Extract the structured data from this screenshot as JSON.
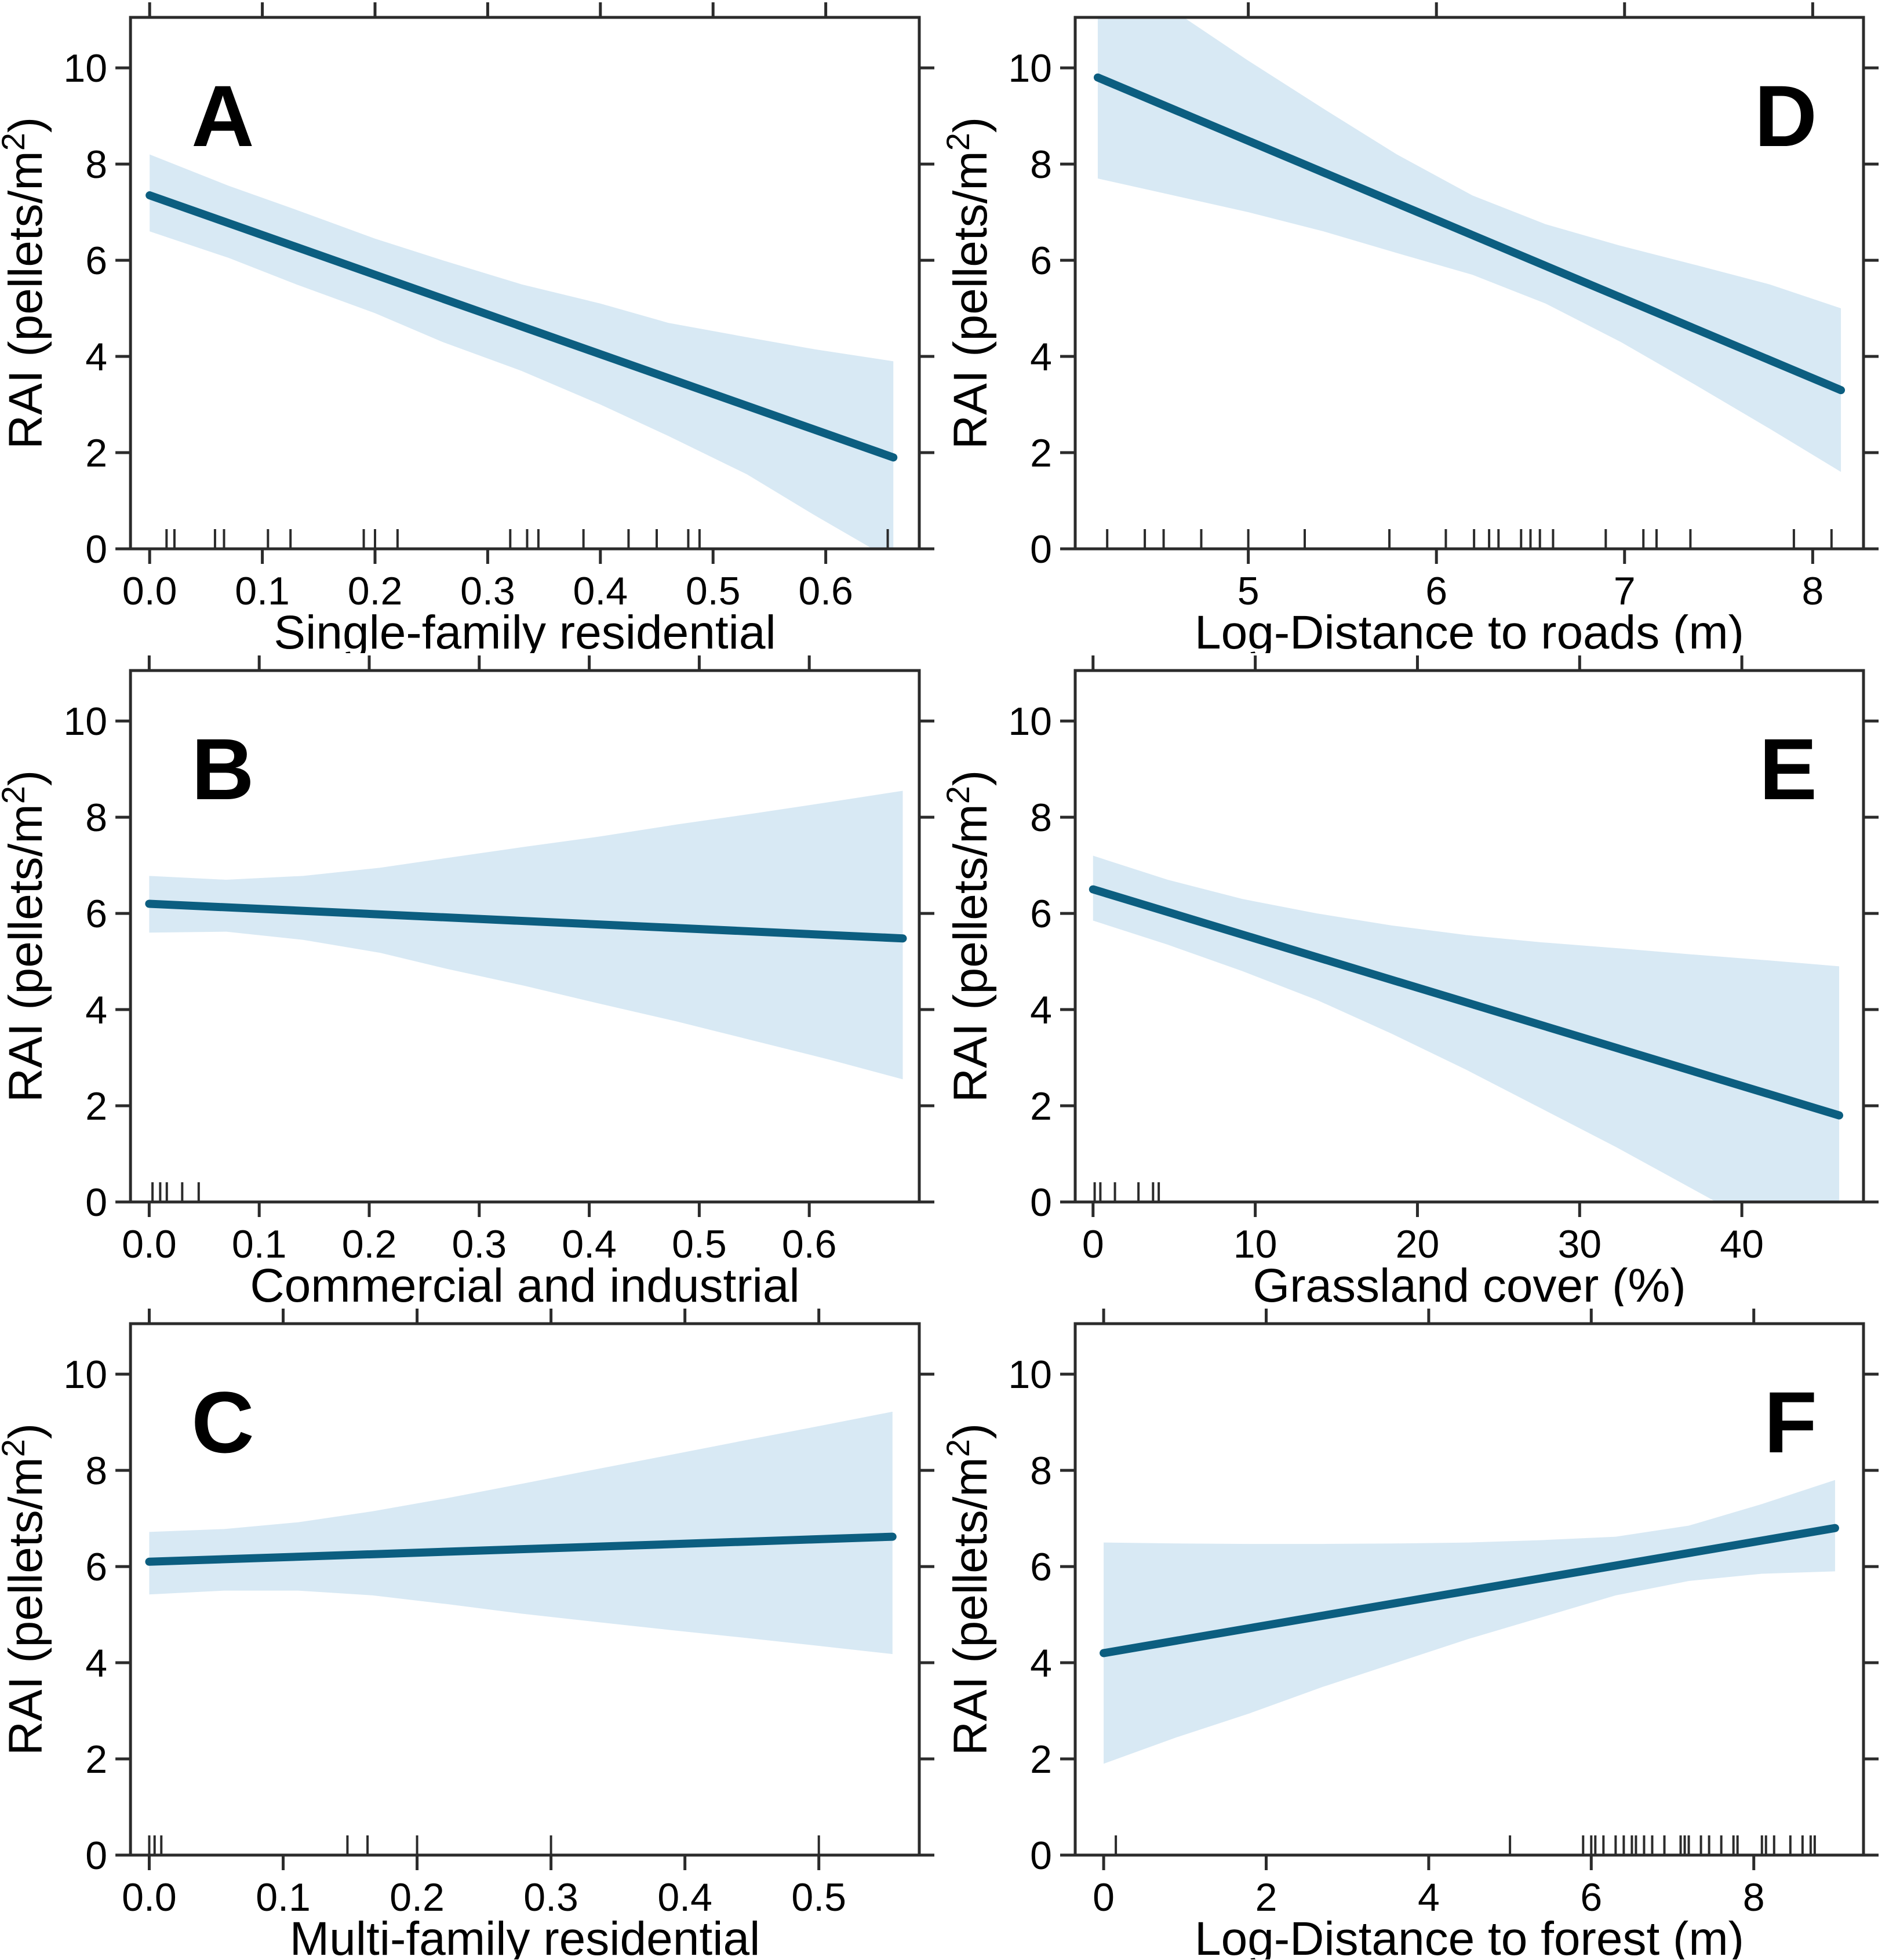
{
  "figure": {
    "description": "Six-panel regression figure of roe deer pellet density (RAI) versus landscape covariates, with 95% confidence bands and data rug marks",
    "background": "#ffffff"
  },
  "colors": {
    "line": "#0c5e80",
    "band": "#d8e9f4",
    "axis": "#2b2b2b",
    "text": "#000000"
  },
  "chart_data": [
    {
      "type": "line",
      "panel_letter": "A",
      "letter_side": "left",
      "xlabel": "Single-family residential",
      "ylabel": "RAI (pellets/m²)",
      "xlim": [
        -0.017,
        0.683
      ],
      "ylim": [
        0,
        11.05
      ],
      "xticks": [
        0,
        0.1,
        0.2,
        0.3,
        0.4,
        0.5,
        0.6
      ],
      "xtick_labels": [
        "0.0",
        "0.1",
        "0.2",
        "0.3",
        "0.4",
        "0.5",
        "0.6"
      ],
      "yticks": [
        0,
        2,
        4,
        6,
        8,
        10
      ],
      "ytick_labels": [
        "0",
        "2",
        "4",
        "6",
        "8",
        "10"
      ],
      "line": {
        "x": [
          0,
          0.66
        ],
        "y": [
          7.35,
          1.9
        ]
      },
      "band": {
        "x": [
          0,
          0.07,
          0.13,
          0.2,
          0.26,
          0.33,
          0.4,
          0.46,
          0.53,
          0.59,
          0.66
        ],
        "upper": [
          8.2,
          7.55,
          7.05,
          6.45,
          6.0,
          5.5,
          5.1,
          4.7,
          4.4,
          4.15,
          3.9
        ],
        "lower": [
          6.6,
          6.05,
          5.5,
          4.9,
          4.3,
          3.7,
          3.0,
          2.35,
          1.55,
          0.7,
          -0.25
        ]
      },
      "rug_x": [
        0.015,
        0.022,
        0.058,
        0.066,
        0.105,
        0.125,
        0.19,
        0.2,
        0.22,
        0.32,
        0.335,
        0.345,
        0.385,
        0.425,
        0.45,
        0.478,
        0.488,
        0.655
      ]
    },
    {
      "type": "line",
      "panel_letter": "D",
      "letter_side": "right",
      "xlabel": "Log-Distance to roads (m)",
      "ylabel": "RAI (pellets/m²)",
      "xlim": [
        4.08,
        8.27
      ],
      "ylim": [
        0,
        11.05
      ],
      "xticks": [
        5,
        6,
        7,
        8
      ],
      "xtick_labels": [
        "5",
        "6",
        "7",
        "8"
      ],
      "yticks": [
        0,
        2,
        4,
        6,
        8,
        10
      ],
      "ytick_labels": [
        "0",
        "2",
        "4",
        "6",
        "8",
        "10"
      ],
      "line": {
        "x": [
          4.2,
          8.15
        ],
        "y": [
          9.8,
          3.3
        ]
      },
      "band": {
        "x": [
          4.2,
          4.6,
          5.0,
          5.4,
          5.79,
          6.19,
          6.58,
          6.98,
          7.38,
          7.77,
          8.15
        ],
        "upper": [
          12.3,
          11.2,
          10.15,
          9.15,
          8.2,
          7.35,
          6.75,
          6.3,
          5.9,
          5.5,
          5.0
        ],
        "lower": [
          7.7,
          7.35,
          7.0,
          6.6,
          6.15,
          5.7,
          5.1,
          4.3,
          3.4,
          2.5,
          1.6
        ]
      },
      "rug_x": [
        4.25,
        4.45,
        4.55,
        4.75,
        5.0,
        5.3,
        5.75,
        6.05,
        6.2,
        6.28,
        6.33,
        6.45,
        6.5,
        6.55,
        6.62,
        6.9,
        7.1,
        7.17,
        7.35,
        7.9,
        8.1
      ]
    },
    {
      "type": "line",
      "panel_letter": "B",
      "letter_side": "left",
      "xlabel": "Commercial and industrial",
      "ylabel": "RAI (pellets/m²)",
      "xlim": [
        -0.017,
        0.7
      ],
      "ylim": [
        0,
        11.05
      ],
      "xticks": [
        0,
        0.1,
        0.2,
        0.3,
        0.4,
        0.5,
        0.6
      ],
      "xtick_labels": [
        "0.0",
        "0.1",
        "0.2",
        "0.3",
        "0.4",
        "0.5",
        "0.6"
      ],
      "yticks": [
        0,
        2,
        4,
        6,
        8,
        10
      ],
      "ytick_labels": [
        "0",
        "2",
        "4",
        "6",
        "8",
        "10"
      ],
      "line": {
        "x": [
          0,
          0.685
        ],
        "y": [
          6.2,
          5.48
        ]
      },
      "band": {
        "x": [
          0,
          0.07,
          0.14,
          0.21,
          0.27,
          0.34,
          0.41,
          0.48,
          0.55,
          0.62,
          0.685
        ],
        "upper": [
          6.78,
          6.7,
          6.78,
          6.95,
          7.15,
          7.38,
          7.6,
          7.85,
          8.08,
          8.32,
          8.55
        ],
        "lower": [
          5.6,
          5.62,
          5.45,
          5.18,
          4.85,
          4.5,
          4.12,
          3.75,
          3.35,
          2.95,
          2.55
        ]
      },
      "rug_x": [
        0.003,
        0.01,
        0.016,
        0.03,
        0.045
      ]
    },
    {
      "type": "line",
      "panel_letter": "E",
      "letter_side": "right",
      "xlabel": "Grassland cover (%)",
      "ylabel": "RAI (pellets/m²)",
      "xlim": [
        -1.1,
        47.5
      ],
      "ylim": [
        0,
        11.05
      ],
      "xticks": [
        0,
        10,
        20,
        30,
        40
      ],
      "xtick_labels": [
        "0",
        "10",
        "20",
        "30",
        "40"
      ],
      "yticks": [
        0,
        2,
        4,
        6,
        8,
        10
      ],
      "ytick_labels": [
        "0",
        "2",
        "4",
        "6",
        "8",
        "10"
      ],
      "line": {
        "x": [
          0,
          46
        ],
        "y": [
          6.5,
          1.8
        ]
      },
      "band": {
        "x": [
          0,
          4.6,
          9.2,
          13.8,
          18.4,
          23.0,
          27.6,
          32.2,
          36.8,
          41.4,
          46.0
        ],
        "upper": [
          7.2,
          6.7,
          6.3,
          6.0,
          5.75,
          5.55,
          5.4,
          5.28,
          5.15,
          5.03,
          4.9
        ],
        "lower": [
          5.85,
          5.35,
          4.8,
          4.2,
          3.5,
          2.75,
          1.95,
          1.15,
          0.3,
          -0.55,
          -1.4
        ]
      },
      "rug_x": [
        0.1,
        0.45,
        1.35,
        2.8,
        3.7,
        4.05
      ]
    },
    {
      "type": "line",
      "panel_letter": "C",
      "letter_side": "left",
      "xlabel": "Multi-family residential",
      "ylabel": "RAI (pellets/m²)",
      "xlim": [
        -0.014,
        0.575
      ],
      "ylim": [
        0,
        11.05
      ],
      "xticks": [
        0,
        0.1,
        0.2,
        0.3,
        0.4,
        0.5
      ],
      "xtick_labels": [
        "0.0",
        "0.1",
        "0.2",
        "0.3",
        "0.4",
        "0.5"
      ],
      "yticks": [
        0,
        2,
        4,
        6,
        8,
        10
      ],
      "ytick_labels": [
        "0",
        "2",
        "4",
        "6",
        "8",
        "10"
      ],
      "line": {
        "x": [
          0,
          0.555
        ],
        "y": [
          6.1,
          6.62
        ]
      },
      "band": {
        "x": [
          0,
          0.056,
          0.111,
          0.167,
          0.222,
          0.278,
          0.333,
          0.389,
          0.444,
          0.5,
          0.555
        ],
        "upper": [
          6.72,
          6.78,
          6.92,
          7.15,
          7.42,
          7.72,
          8.02,
          8.32,
          8.62,
          8.92,
          9.22
        ],
        "lower": [
          5.42,
          5.5,
          5.5,
          5.4,
          5.22,
          5.02,
          4.85,
          4.68,
          4.52,
          4.35,
          4.18
        ]
      },
      "rug_x": [
        0.0,
        0.004,
        0.009,
        0.148,
        0.163,
        0.2,
        0.3,
        0.5
      ]
    },
    {
      "type": "line",
      "panel_letter": "F",
      "letter_side": "right",
      "xlabel": "Log-Distance to forest (m)",
      "ylabel": "RAI (pellets/m²)",
      "xlim": [
        -0.35,
        9.35
      ],
      "ylim": [
        0,
        11.05
      ],
      "xticks": [
        0,
        2,
        4,
        6,
        8
      ],
      "xtick_labels": [
        "0",
        "2",
        "4",
        "6",
        "8"
      ],
      "yticks": [
        0,
        2,
        4,
        6,
        8,
        10
      ],
      "ytick_labels": [
        "0",
        "2",
        "4",
        "6",
        "8",
        "10"
      ],
      "line": {
        "x": [
          0,
          9.0
        ],
        "y": [
          4.2,
          6.8
        ]
      },
      "band": {
        "x": [
          0,
          0.9,
          1.8,
          2.7,
          3.6,
          4.5,
          5.4,
          6.3,
          7.2,
          8.1,
          9.0
        ],
        "upper": [
          6.5,
          6.48,
          6.47,
          6.47,
          6.48,
          6.5,
          6.55,
          6.62,
          6.85,
          7.3,
          7.8
        ],
        "lower": [
          1.9,
          2.45,
          2.95,
          3.5,
          4.0,
          4.5,
          4.95,
          5.4,
          5.7,
          5.85,
          5.9
        ]
      },
      "rug_x": [
        0.15,
        5.0,
        5.9,
        6.0,
        6.05,
        6.15,
        6.3,
        6.4,
        6.5,
        6.55,
        6.65,
        6.75,
        6.9,
        7.1,
        7.15,
        7.2,
        7.35,
        7.45,
        7.6,
        7.75,
        7.8,
        8.1,
        8.15,
        8.25,
        8.45,
        8.6,
        8.7,
        8.75
      ]
    }
  ]
}
